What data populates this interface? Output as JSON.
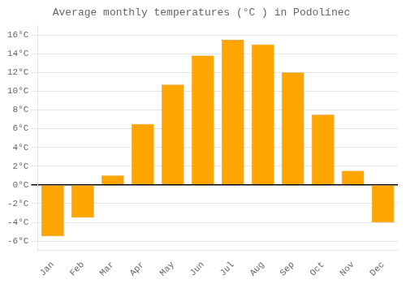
{
  "chart_data": {
    "type": "bar",
    "title": "Average monthly temperatures (°C ) in Podolínec",
    "categories": [
      "Jan",
      "Feb",
      "Mar",
      "Apr",
      "May",
      "Jun",
      "Jul",
      "Aug",
      "Sep",
      "Oct",
      "Nov",
      "Dec"
    ],
    "values": [
      -5.5,
      -3.5,
      1.0,
      6.5,
      10.7,
      13.8,
      15.5,
      15.0,
      12.0,
      7.5,
      1.5,
      -4.0
    ],
    "color": "#FFA500",
    "ylim": [
      -7,
      17
    ],
    "yticks": [
      {
        "value": -6,
        "label": "-6°C"
      },
      {
        "value": -4,
        "label": "-4°C"
      },
      {
        "value": -2,
        "label": "-2°C"
      },
      {
        "value": 0,
        "label": "0°C"
      },
      {
        "value": 2,
        "label": "2°C"
      },
      {
        "value": 4,
        "label": "4°C"
      },
      {
        "value": 6,
        "label": "6°C"
      },
      {
        "value": 8,
        "label": "8°C"
      },
      {
        "value": 10,
        "label": "10°C"
      },
      {
        "value": 12,
        "label": "12°C"
      },
      {
        "value": 14,
        "label": "14°C"
      },
      {
        "value": 16,
        "label": "16°C"
      }
    ],
    "grid": true
  }
}
